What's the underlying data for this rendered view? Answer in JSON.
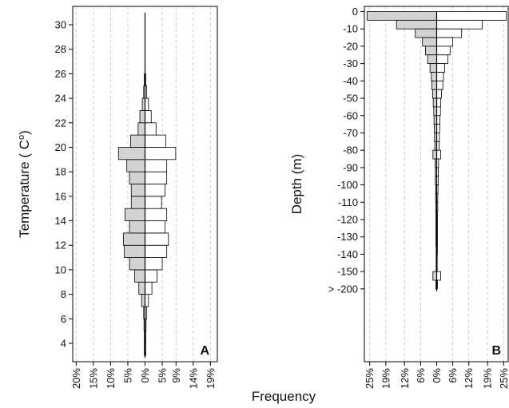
{
  "figure": {
    "shared_xlabel": "Frequency"
  },
  "chart_data": [
    {
      "type": "bar",
      "orientation": "horizontal-back-to-back",
      "panel_label": "A",
      "ylabel": "Temperature ( Cº)",
      "ylabel_main": "Temperature ( C",
      "ylabel_super": "o",
      "ylabel_close": ")",
      "ylim": [
        2.5,
        31.5
      ],
      "yticks": [
        4,
        6,
        8,
        10,
        12,
        14,
        16,
        18,
        20,
        22,
        24,
        26,
        28,
        30
      ],
      "ytick_labels": [
        "4",
        "6",
        "8",
        "10",
        "12",
        "14",
        "16",
        "18",
        "20",
        "22",
        "24",
        "26",
        "28",
        "30"
      ],
      "xlim": [
        -21,
        21
      ],
      "xticks": [
        -20,
        -15,
        -10,
        -5,
        0,
        5,
        9,
        14,
        19
      ],
      "xtick_labels": [
        "20%",
        "15%",
        "10%",
        "5%",
        "0%",
        "5%",
        "9%",
        "14%",
        "19%"
      ],
      "grid": true,
      "bin_width": 1,
      "bin_centers": [
        3.5,
        4.5,
        5.5,
        6.5,
        7.5,
        8.5,
        9.5,
        10.5,
        11.5,
        12.5,
        13.5,
        14.5,
        15.5,
        16.5,
        17.5,
        18.5,
        19.5,
        20.5,
        21.5,
        22.5,
        23.5,
        24.5,
        25.5
      ],
      "series": [
        {
          "side": "left",
          "color": "#d3d3d3",
          "values": [
            0.2,
            0.2,
            0.3,
            0.4,
            1.0,
            1.8,
            3.0,
            4.5,
            6.0,
            6.3,
            4.5,
            5.8,
            4.0,
            4.0,
            4.5,
            5.3,
            7.7,
            4.2,
            2.0,
            1.5,
            0.8,
            0.4,
            0.2
          ]
        },
        {
          "side": "right",
          "color": "#ffffff",
          "values": [
            0.2,
            0.2,
            0.3,
            0.5,
            1.0,
            2.0,
            3.5,
            5.0,
            6.3,
            6.8,
            5.8,
            6.3,
            4.8,
            5.8,
            6.3,
            6.3,
            8.9,
            6.0,
            3.2,
            1.8,
            1.0,
            0.5,
            0.2
          ]
        }
      ]
    },
    {
      "type": "bar",
      "orientation": "horizontal-back-to-back",
      "panel_label": "B",
      "ylabel": "Depth (m)",
      "ylim": [
        -202,
        3
      ],
      "yticks": [
        0,
        -10,
        -20,
        -30,
        -40,
        -50,
        -60,
        -70,
        -80,
        -90,
        -100,
        -110,
        -120,
        -130,
        -140,
        -150,
        -160
      ],
      "ytick_labels": [
        "0",
        "-10",
        "-20",
        "-30",
        "-40",
        "-50",
        "-60",
        "-70",
        "-80",
        "-90",
        "-100",
        "-110",
        "-120",
        "-130",
        "-140",
        "-150",
        "> -200"
      ],
      "xlim": [
        -27,
        27
      ],
      "xticks": [
        -25,
        -19,
        -12,
        -6,
        0,
        6,
        12,
        19,
        25
      ],
      "xtick_labels": [
        "25%",
        "19%",
        "12%",
        "6%",
        "0%",
        "6%",
        "12%",
        "19%",
        "25%"
      ],
      "grid": true,
      "bin_width": 5,
      "bin_centers": [
        -2.5,
        -7.5,
        -12.5,
        -17.5,
        -22.5,
        -27.5,
        -32.5,
        -37.5,
        -42.5,
        -47.5,
        -52.5,
        -57.5,
        -62.5,
        -67.5,
        -72.5,
        -77.5,
        -82.5,
        -87.5,
        -92.5,
        -97.5,
        -102.5,
        -107.5,
        -112.5,
        -117.5,
        -122.5,
        -127.5,
        -132.5,
        -137.5,
        -142.5,
        -147.5,
        -152.5,
        -157.5
      ],
      "series": [
        {
          "side": "left",
          "color": "#d3d3d3",
          "values": [
            26,
            15,
            8,
            5.3,
            4.2,
            3.4,
            2.5,
            2.0,
            1.8,
            1.5,
            1.3,
            1.1,
            1.0,
            0.9,
            0.8,
            0.7,
            1.4,
            0.6,
            0.5,
            0.5,
            0.4,
            0.4,
            0.3,
            0.3,
            0.3,
            0.3,
            0.3,
            0.2,
            0.2,
            0.2,
            1.4,
            0.3
          ]
        },
        {
          "side": "right",
          "color": "#ffffff",
          "values": [
            26,
            17,
            9.3,
            6.0,
            5.0,
            4.2,
            3.0,
            2.5,
            2.3,
            1.8,
            1.5,
            1.4,
            1.2,
            1.1,
            1.0,
            0.9,
            1.5,
            0.7,
            0.6,
            0.6,
            0.5,
            0.4,
            0.4,
            0.3,
            0.3,
            0.3,
            0.3,
            0.3,
            0.2,
            0.2,
            1.5,
            0.3
          ]
        }
      ]
    }
  ]
}
